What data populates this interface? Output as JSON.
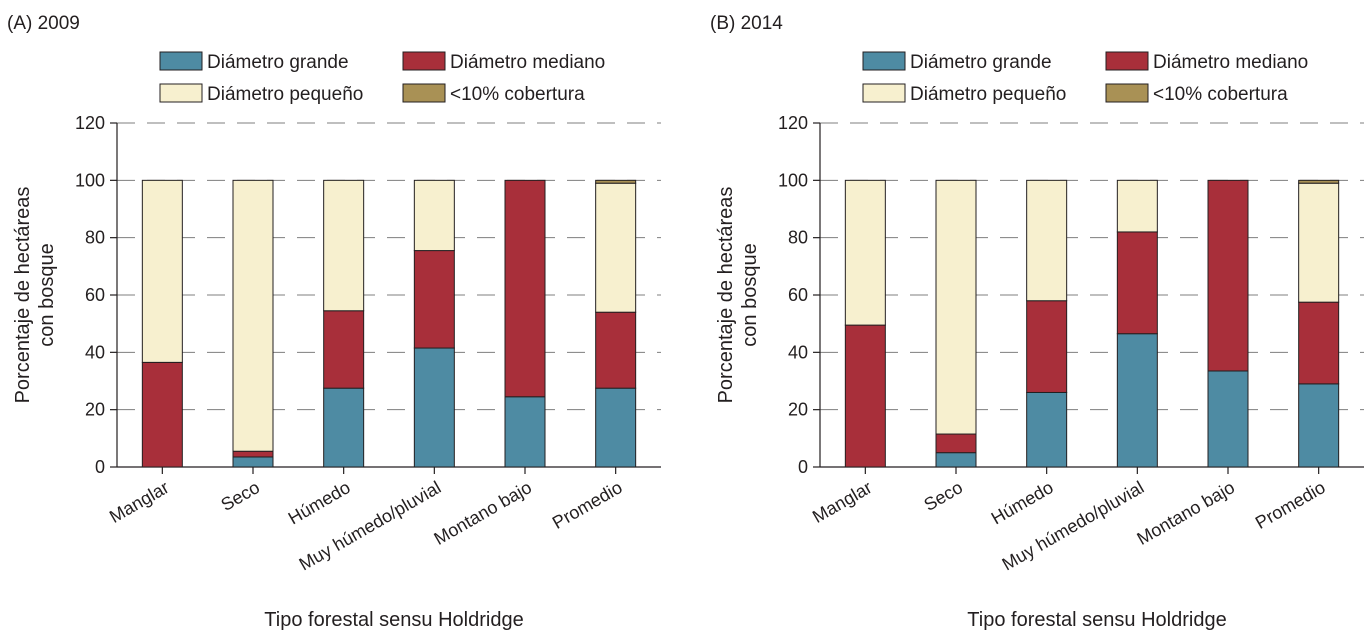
{
  "figure": {
    "colors": {
      "large": "#4e8ba3",
      "medium": "#a82f3a",
      "small": "#f7f0cf",
      "cover": "#a99155",
      "ink": "#231f20",
      "grid": "#7f7f7f"
    }
  },
  "chart_data": [
    {
      "type": "bar",
      "stacked": true,
      "title": "(A) 2009",
      "xlabel": "Tipo forestal sensu Holdridge",
      "ylabel": [
        "Porcentaje de hectáreas",
        "con bosque"
      ],
      "ylim": [
        0,
        120
      ],
      "yticks": [
        0,
        20,
        40,
        60,
        80,
        100,
        120
      ],
      "grid": "horizontal dashed",
      "legend_position": "top",
      "categories": [
        "Manglar",
        "Seco",
        "Húmedo",
        "Muy húmedo/pluvial",
        "Montano bajo",
        "Promedio"
      ],
      "series": [
        {
          "key": "large",
          "name": "Diámetro grande",
          "values": [
            0,
            3.5,
            27.5,
            41.5,
            24.5,
            27.5
          ]
        },
        {
          "key": "medium",
          "name": "Diámetro mediano",
          "values": [
            36.5,
            2,
            27,
            34,
            75.5,
            26.5
          ]
        },
        {
          "key": "small",
          "name": "Diámetro pequeño",
          "values": [
            63.5,
            94.5,
            45.5,
            24.5,
            0,
            45
          ]
        },
        {
          "key": "cover",
          "name": "<10% cobertura",
          "values": [
            0,
            0,
            0,
            0,
            0,
            1
          ]
        }
      ]
    },
    {
      "type": "bar",
      "stacked": true,
      "title": "(B) 2014",
      "xlabel": "Tipo forestal sensu Holdridge",
      "ylabel": [
        "Porcentaje de hectáreas",
        "con bosque"
      ],
      "ylim": [
        0,
        120
      ],
      "yticks": [
        0,
        20,
        40,
        60,
        80,
        100,
        120
      ],
      "grid": "horizontal dashed",
      "legend_position": "top",
      "categories": [
        "Manglar",
        "Seco",
        "Húmedo",
        "Muy húmedo/pluvial",
        "Montano bajo",
        "Promedio"
      ],
      "series": [
        {
          "key": "large",
          "name": "Diámetro grande",
          "values": [
            0,
            5,
            26,
            46.5,
            33.5,
            29
          ]
        },
        {
          "key": "medium",
          "name": "Diámetro mediano",
          "values": [
            49.5,
            6.5,
            32,
            35.5,
            66.5,
            28.5
          ]
        },
        {
          "key": "small",
          "name": "Diámetro pequeño",
          "values": [
            50.5,
            88.5,
            42,
            18,
            0,
            41.5
          ]
        },
        {
          "key": "cover",
          "name": "<10% cobertura",
          "values": [
            0,
            0,
            0,
            0,
            0,
            1
          ]
        }
      ]
    }
  ]
}
